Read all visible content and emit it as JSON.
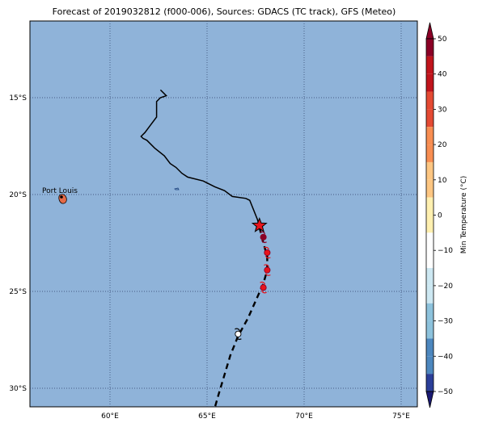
{
  "title": "Forecast of 2019032812 (f000-006), Sources: GDACS (TC track), GFS (Meteo)",
  "colorbar": {
    "label": "Min Temperature (°C)",
    "ticks": [
      "50",
      "40",
      "30",
      "20",
      "10",
      "0",
      "−10",
      "−20",
      "−30",
      "−40",
      "−50"
    ],
    "colors": [
      "#8b0026",
      "#c0141c",
      "#e44a33",
      "#f88e52",
      "#fdc682",
      "#fff0b0",
      "#ffffff",
      "#cde8f2",
      "#8dc2dc",
      "#4d87be",
      "#2b3f99",
      "#1a1a73"
    ]
  },
  "map": {
    "ocean_color": "#8fb3d9",
    "lat_labels": [
      "15°S",
      "20°S",
      "25°S",
      "30°S"
    ],
    "lon_labels": [
      "60°E",
      "65°E",
      "70°E",
      "75°E"
    ],
    "city": "Port Louis"
  },
  "chart_data": {
    "type": "map",
    "lon_range": [
      55.6,
      76
    ],
    "lat_range": [
      -31,
      -11
    ],
    "grid": true,
    "past_track": [
      [
        62.6,
        -14.6
      ],
      [
        62.9,
        -14.9
      ],
      [
        62.6,
        -15.0
      ],
      [
        62.4,
        -15.2
      ],
      [
        62.4,
        -16.0
      ],
      [
        62.1,
        -16.4
      ],
      [
        61.8,
        -16.8
      ],
      [
        61.6,
        -17.0
      ],
      [
        61.7,
        -17.1
      ],
      [
        61.9,
        -17.2
      ],
      [
        62.3,
        -17.6
      ],
      [
        62.8,
        -18.0
      ],
      [
        63.1,
        -18.4
      ],
      [
        63.4,
        -18.6
      ],
      [
        63.7,
        -18.9
      ],
      [
        64.0,
        -19.1
      ],
      [
        64.8,
        -19.3
      ],
      [
        65.4,
        -19.6
      ],
      [
        65.9,
        -19.8
      ],
      [
        66.3,
        -20.1
      ],
      [
        67.0,
        -20.2
      ],
      [
        67.2,
        -20.3
      ],
      [
        67.4,
        -20.8
      ],
      [
        67.6,
        -21.3
      ],
      [
        67.7,
        -21.7
      ]
    ],
    "forecast_track": [
      [
        67.7,
        -21.7
      ],
      [
        67.9,
        -22.5
      ],
      [
        68.1,
        -23.2
      ],
      [
        68.1,
        -23.9
      ],
      [
        67.9,
        -24.6
      ],
      [
        67.5,
        -25.5
      ],
      [
        67.1,
        -26.4
      ],
      [
        66.6,
        -27.3
      ],
      [
        66.2,
        -28.3
      ],
      [
        65.9,
        -29.3
      ],
      [
        65.6,
        -30.3
      ],
      [
        65.4,
        -31.0
      ]
    ],
    "current_position": [
      67.7,
      -21.6
    ],
    "forecast_points": [
      {
        "lon": 67.9,
        "lat": -22.2,
        "color": "#8b0026"
      },
      {
        "lon": 68.1,
        "lat": -23.0,
        "color": "#e8141c"
      },
      {
        "lon": 68.1,
        "lat": -23.9,
        "color": "#e8141c"
      },
      {
        "lon": 67.9,
        "lat": -24.8,
        "color": "#e8141c"
      },
      {
        "lon": 66.6,
        "lat": -27.2,
        "color": "#ffffff"
      }
    ],
    "city_location": [
      57.5,
      -20.1
    ]
  }
}
